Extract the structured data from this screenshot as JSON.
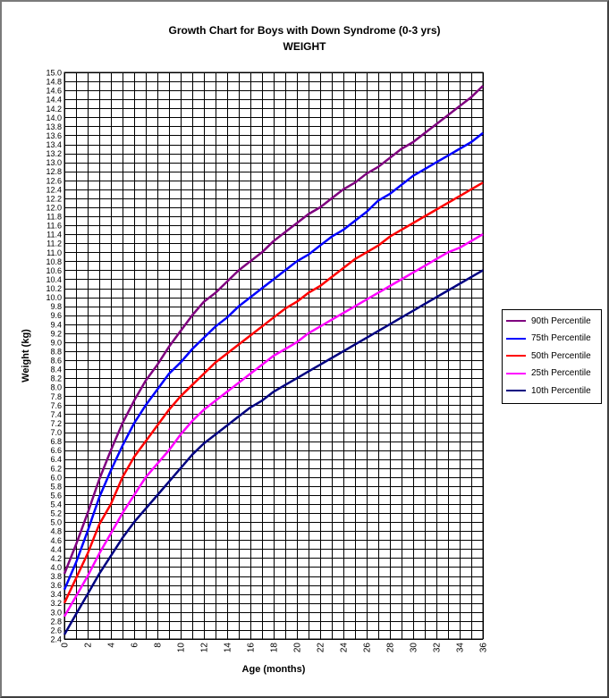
{
  "chart_data": {
    "type": "line",
    "title": "Growth Chart for Boys with Down Syndrome  (0-3 yrs)",
    "subtitle": "WEIGHT",
    "xlabel": "Age (months)",
    "ylabel": "Weight  (kg)",
    "xlim": [
      0,
      36
    ],
    "ylim": [
      2.4,
      15.0
    ],
    "x_ticks": [
      0,
      2,
      4,
      6,
      8,
      10,
      12,
      14,
      16,
      18,
      20,
      22,
      24,
      26,
      28,
      30,
      32,
      34,
      36
    ],
    "y_ticks": [
      "2.4",
      "2.6",
      "2.8",
      "3.0",
      "3.2",
      "3.4",
      "3.6",
      "3.8",
      "4.0",
      "4.2",
      "4.4",
      "4.6",
      "4.8",
      "5.0",
      "5.2",
      "5.4",
      "5.6",
      "5.8",
      "6.0",
      "6.2",
      "6.4",
      "6.6",
      "6.8",
      "7.0",
      "7.2",
      "7.4",
      "7.6",
      "7.8",
      "8.0",
      "8.2",
      "8.4",
      "8.6",
      "8.8",
      "9.0",
      "9.2",
      "9.4",
      "9.6",
      "9.8",
      "10.0",
      "10.2",
      "10.4",
      "10.6",
      "10.8",
      "11.0",
      "11.2",
      "11.4",
      "11.6",
      "11.8",
      "12.0",
      "12.2",
      "12.4",
      "12.6",
      "12.8",
      "13.0",
      "13.2",
      "13.4",
      "13.6",
      "13.8",
      "14.0",
      "14.2",
      "14.4",
      "14.6",
      "14.8",
      "15.0"
    ],
    "grid": true,
    "legend_position": "right",
    "x": [
      0,
      1,
      2,
      3,
      4,
      5,
      6,
      7,
      8,
      9,
      10,
      11,
      12,
      13,
      14,
      15,
      16,
      17,
      18,
      19,
      20,
      21,
      22,
      23,
      24,
      25,
      26,
      27,
      28,
      29,
      30,
      31,
      32,
      33,
      34,
      35,
      36
    ],
    "series": [
      {
        "name": "90th Percentile",
        "color": "#7f007f",
        "values": [
          3.85,
          4.5,
          5.2,
          5.95,
          6.6,
          7.2,
          7.7,
          8.15,
          8.5,
          8.9,
          9.25,
          9.6,
          9.9,
          10.1,
          10.35,
          10.6,
          10.8,
          11.0,
          11.25,
          11.45,
          11.65,
          11.85,
          12.0,
          12.2,
          12.4,
          12.55,
          12.75,
          12.9,
          13.1,
          13.3,
          13.45,
          13.65,
          13.85,
          14.05,
          14.25,
          14.45,
          14.7
        ]
      },
      {
        "name": "75th Percentile",
        "color": "#0000ff",
        "values": [
          3.5,
          4.1,
          4.8,
          5.55,
          6.15,
          6.7,
          7.2,
          7.6,
          7.95,
          8.3,
          8.55,
          8.85,
          9.1,
          9.35,
          9.55,
          9.8,
          10.0,
          10.2,
          10.4,
          10.6,
          10.8,
          10.95,
          11.15,
          11.35,
          11.5,
          11.7,
          11.9,
          12.15,
          12.3,
          12.5,
          12.7,
          12.85,
          13.0,
          13.15,
          13.3,
          13.45,
          13.65
        ]
      },
      {
        "name": "50th Percentile",
        "color": "#ff0000",
        "values": [
          3.2,
          3.75,
          4.3,
          4.95,
          5.4,
          6.0,
          6.45,
          6.8,
          7.15,
          7.5,
          7.8,
          8.05,
          8.3,
          8.55,
          8.75,
          8.95,
          9.15,
          9.35,
          9.55,
          9.75,
          9.9,
          10.1,
          10.25,
          10.45,
          10.65,
          10.85,
          11.0,
          11.15,
          11.35,
          11.5,
          11.65,
          11.8,
          11.95,
          12.1,
          12.25,
          12.4,
          12.55
        ]
      },
      {
        "name": "25th Percentile",
        "color": "#ff00ff",
        "values": [
          2.9,
          3.35,
          3.8,
          4.3,
          4.75,
          5.2,
          5.6,
          6.0,
          6.3,
          6.6,
          6.95,
          7.25,
          7.5,
          7.7,
          7.9,
          8.1,
          8.3,
          8.5,
          8.7,
          8.85,
          9.0,
          9.2,
          9.35,
          9.5,
          9.65,
          9.8,
          9.95,
          10.1,
          10.25,
          10.4,
          10.55,
          10.7,
          10.85,
          11.0,
          11.1,
          11.25,
          11.4
        ]
      },
      {
        "name": "10th Percentile",
        "color": "#000080",
        "values": [
          2.5,
          2.95,
          3.4,
          3.85,
          4.25,
          4.65,
          5.0,
          5.3,
          5.6,
          5.9,
          6.2,
          6.5,
          6.75,
          6.95,
          7.15,
          7.35,
          7.55,
          7.7,
          7.9,
          8.05,
          8.2,
          8.35,
          8.5,
          8.65,
          8.8,
          8.95,
          9.1,
          9.25,
          9.4,
          9.55,
          9.7,
          9.85,
          10.0,
          10.15,
          10.3,
          10.45,
          10.6
        ]
      }
    ]
  }
}
